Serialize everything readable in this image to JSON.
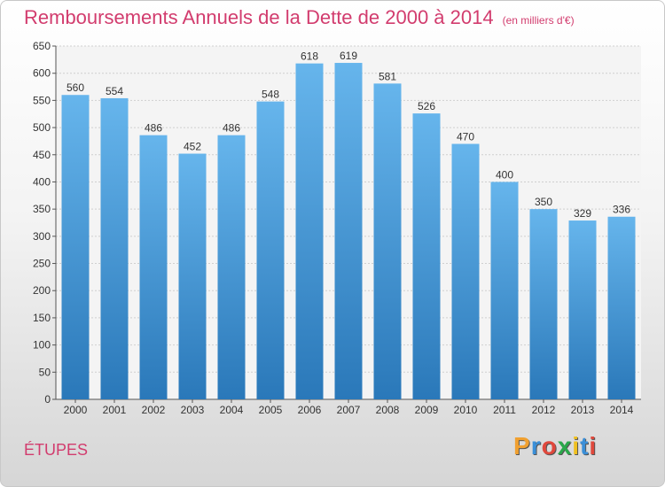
{
  "header": {
    "title": "Remboursements Annuels de la Dette de 2000 à 2014",
    "subtitle": "(en milliers d'€)"
  },
  "footer": {
    "commune": "ÉTUPES",
    "brand": [
      "P",
      "r",
      "o",
      "x",
      "i",
      "t",
      "i"
    ],
    "brand_colors": [
      "#f0a030",
      "#3a8fd8",
      "#e0483c",
      "#2aa84a",
      "#f0c020",
      "#3a8fd8",
      "#e0483c"
    ]
  },
  "colors": {
    "bar_top": "#66b5ec",
    "bar_bottom": "#2a78b9",
    "title": "#d23c6e"
  },
  "chart_data": {
    "type": "bar",
    "categories": [
      "2000",
      "2001",
      "2002",
      "2003",
      "2004",
      "2005",
      "2006",
      "2007",
      "2008",
      "2009",
      "2010",
      "2011",
      "2012",
      "2013",
      "2014"
    ],
    "values": [
      560,
      554,
      486,
      452,
      486,
      548,
      618,
      619,
      581,
      526,
      470,
      400,
      350,
      329,
      336
    ],
    "yticks": [
      0,
      50,
      100,
      150,
      200,
      250,
      300,
      350,
      400,
      450,
      500,
      550,
      600,
      650
    ],
    "ylim": [
      0,
      650
    ],
    "grid": true,
    "legend": "none"
  }
}
